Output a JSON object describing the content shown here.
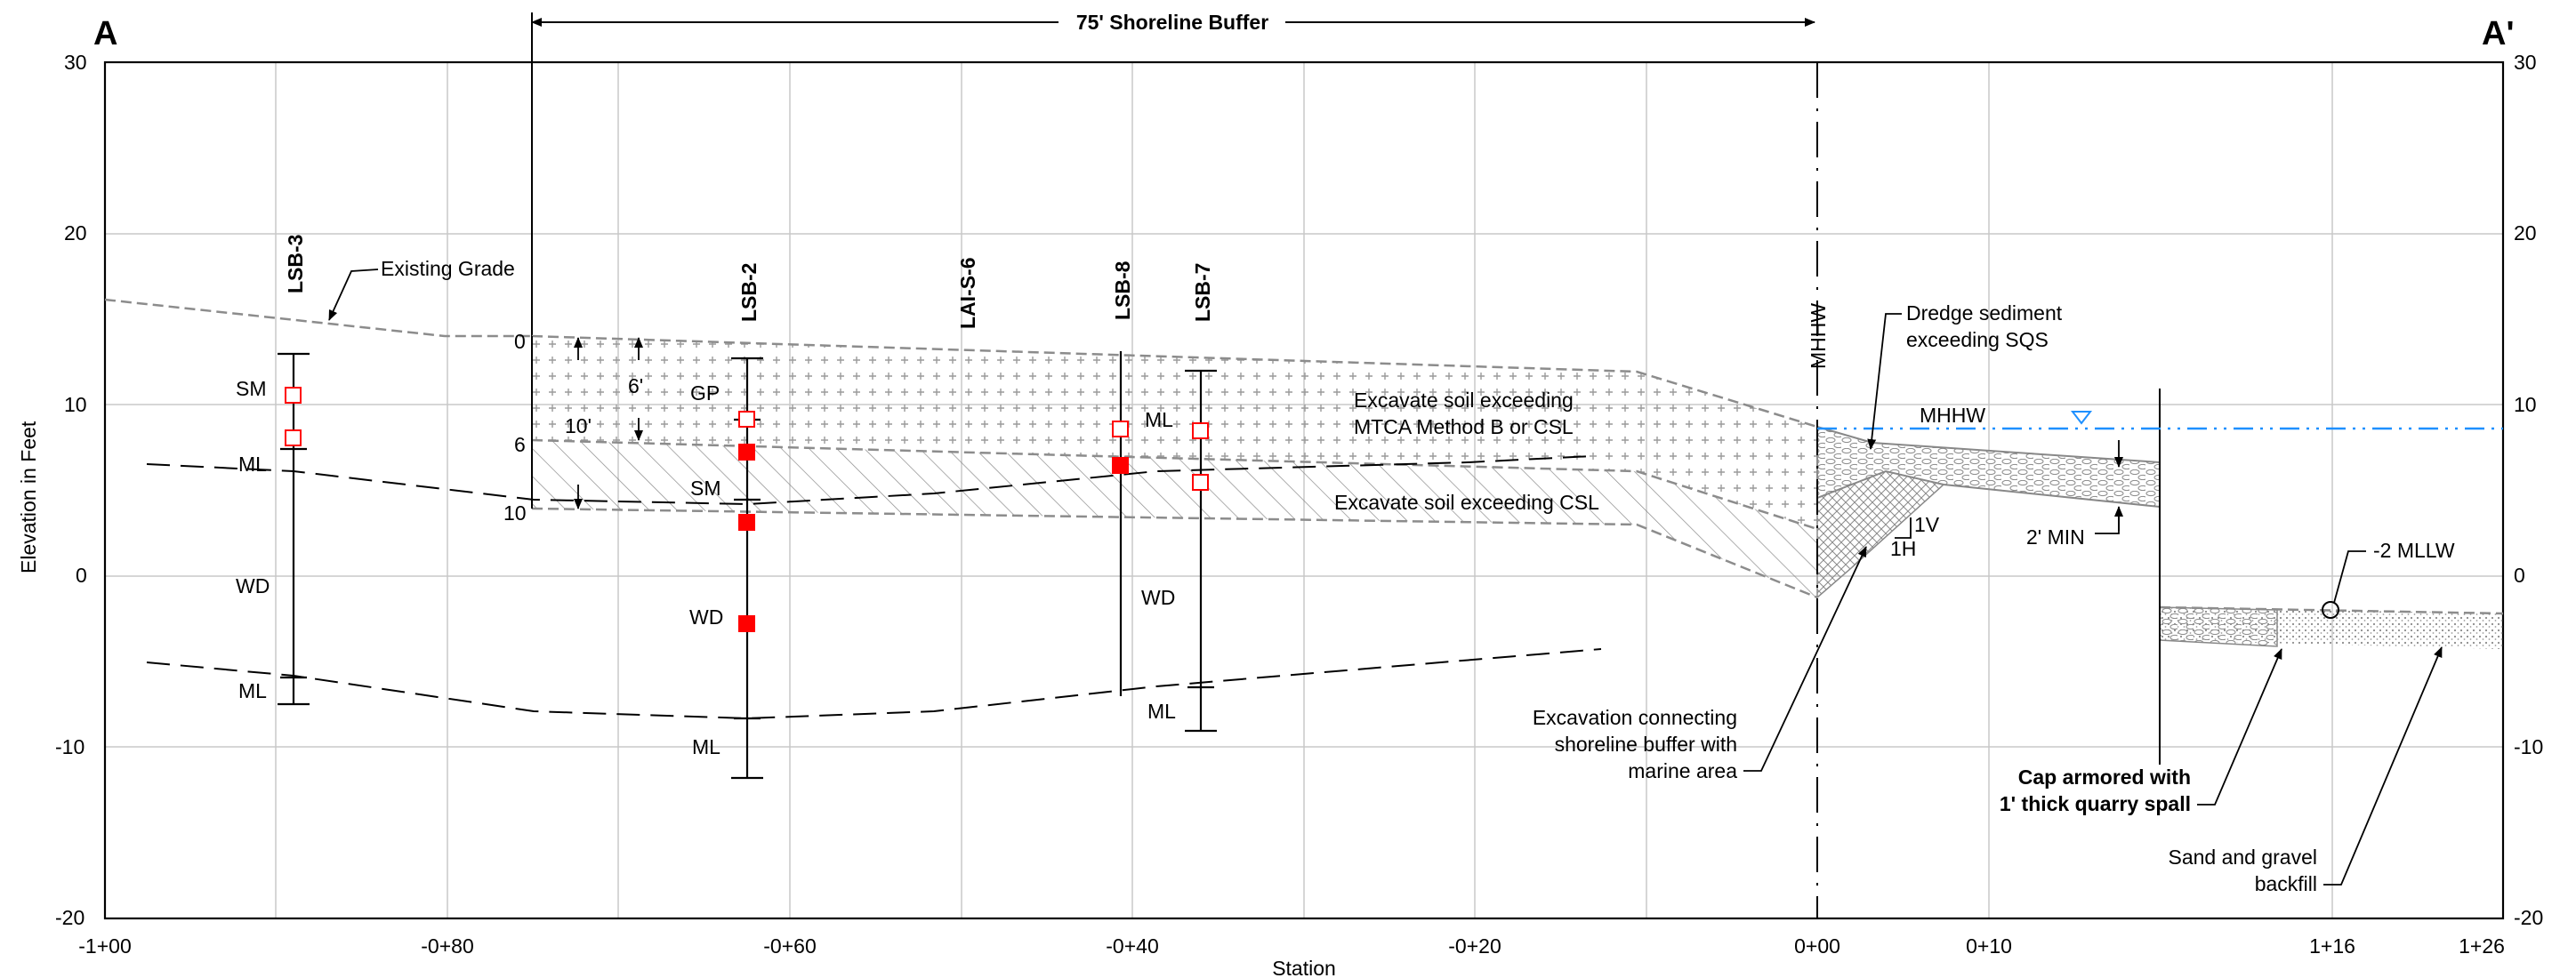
{
  "section": {
    "start_label": "A",
    "end_label": "A'"
  },
  "axes": {
    "ylabel": "Elevation in Feet",
    "xlabel": "Station",
    "y_ticks": [
      "30",
      "20",
      "10",
      "0",
      "-10",
      "-20"
    ],
    "x_ticks": [
      "-1+00",
      "-0+80",
      "-0+60",
      "-0+40",
      "-0+20",
      "0+00",
      "0+10",
      "1+16",
      "1+26"
    ],
    "ylim": [
      -20,
      30
    ]
  },
  "buffer": {
    "label": "75' Shoreline Buffer"
  },
  "grade_label": "Existing Grade",
  "borings": [
    {
      "id": "LSB-3",
      "soils": [
        "SM",
        "ML",
        "WD",
        "ML"
      ]
    },
    {
      "id": "LSB-2",
      "soils": [
        "GP",
        "SM",
        "WD",
        "ML"
      ]
    },
    {
      "id": "LAI-S-6",
      "soils": []
    },
    {
      "id": "LSB-8",
      "soils": [
        "ML",
        "WD"
      ]
    },
    {
      "id": "LSB-7",
      "soils": [
        "ML"
      ]
    }
  ],
  "depth_marks": [
    "0",
    "6",
    "10"
  ],
  "dims": {
    "six": "6'",
    "ten": "10'"
  },
  "zones": {
    "mtca_line1": "Excavate soil exceeding",
    "mtca_line2": "MTCA Method B or CSL",
    "csl": "Excavate soil exceeding CSL"
  },
  "mhhw": {
    "vertical": "MHHW",
    "water": "MHHW"
  },
  "dredge": {
    "line1": "Dredge sediment",
    "line2": "exceeding SQS"
  },
  "slope": {
    "v": "1V",
    "h": "1H"
  },
  "cap_min": "2' MIN",
  "mllw": "-2 MLLW",
  "excavation_note": [
    "Excavation connecting",
    "shoreline buffer with",
    "marine area"
  ],
  "cap_note": [
    "Cap armored with",
    "1' thick quarry spall"
  ],
  "backfill_note": [
    "Sand and gravel",
    "backfill"
  ],
  "colors": {
    "sample": "#ff0000",
    "water": "#1e90ff",
    "grid": "#c8c8c8",
    "zone": "#8c8c8c"
  }
}
